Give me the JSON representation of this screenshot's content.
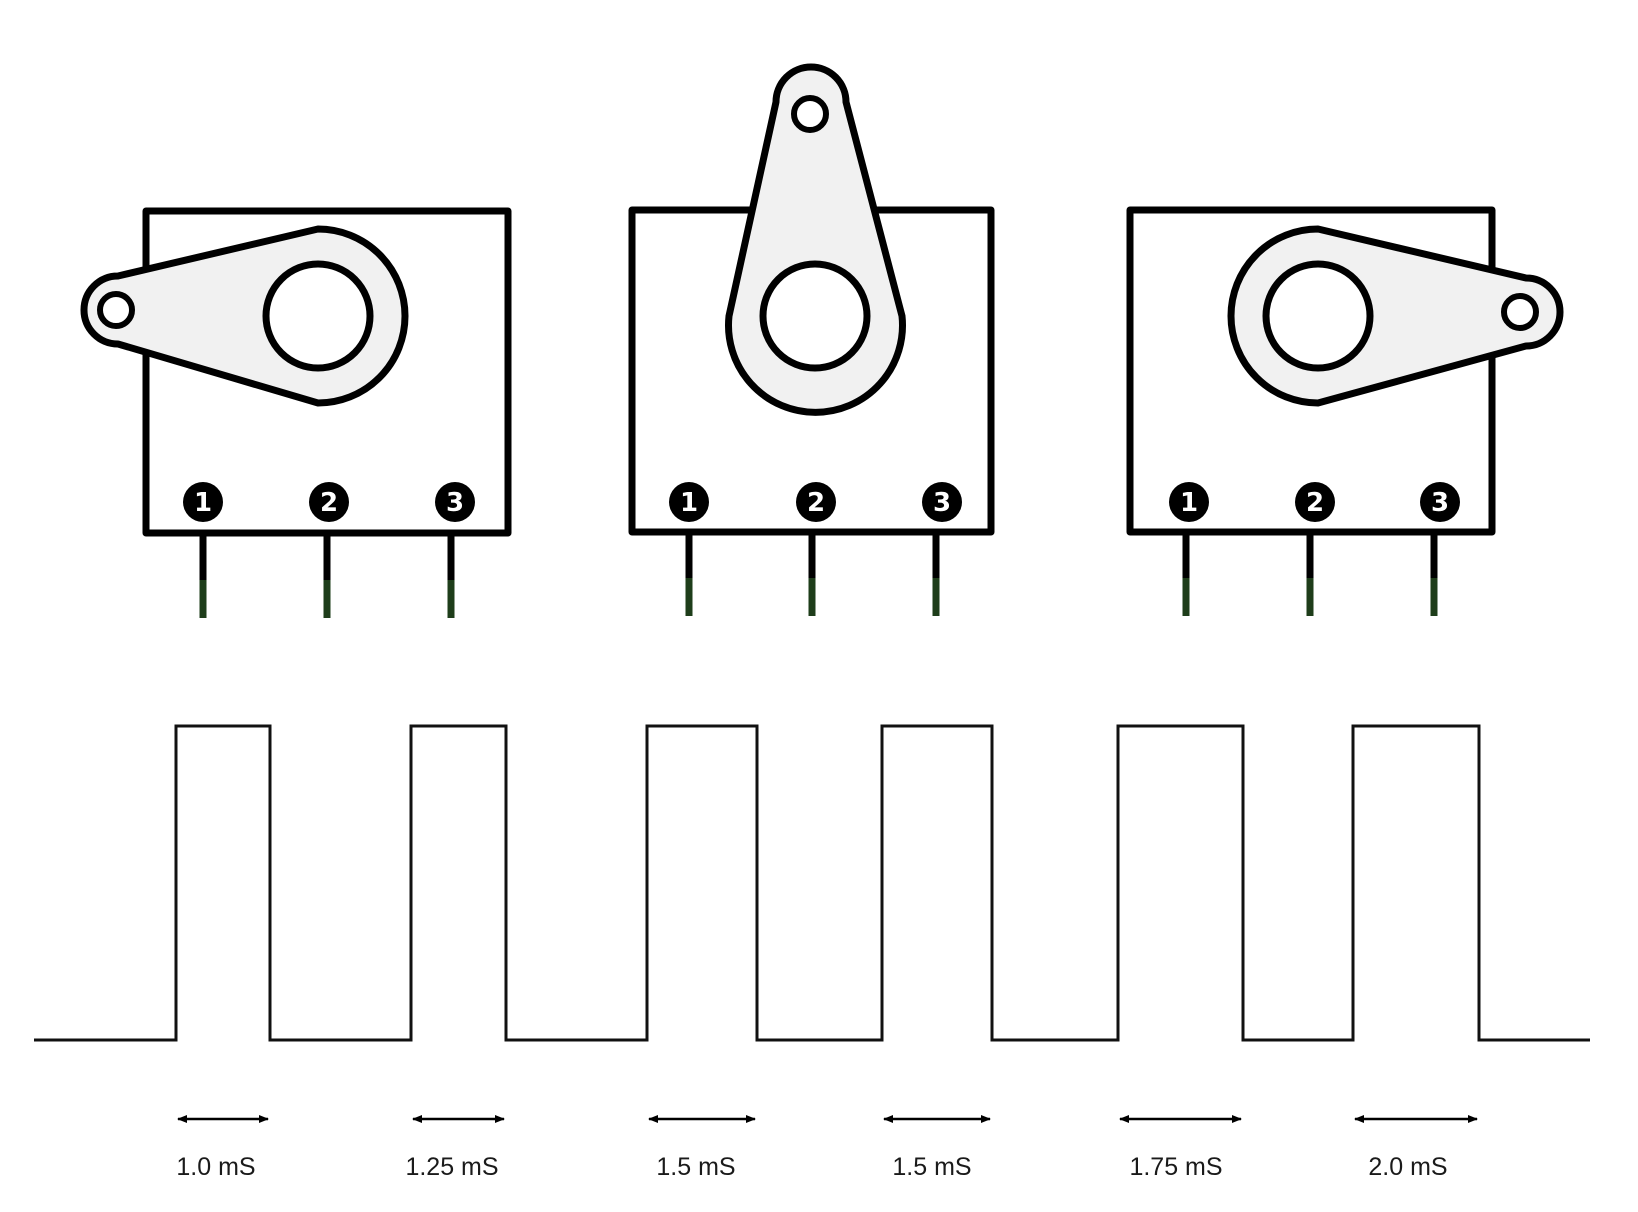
{
  "colors": {
    "outline": "#000000",
    "horn_fill": "#f1f1f1",
    "pin_tip": "#1e3d1a",
    "pin_badge": "#000000",
    "waveform": "#111111"
  },
  "servos": [
    {
      "name": "servo-left",
      "horn_direction": "left",
      "pins": [
        "1",
        "2",
        "3"
      ]
    },
    {
      "name": "servo-center",
      "horn_direction": "up",
      "pins": [
        "1",
        "2",
        "3"
      ]
    },
    {
      "name": "servo-right",
      "horn_direction": "right",
      "pins": [
        "1",
        "2",
        "3"
      ]
    }
  ],
  "waveform": {
    "pulse_count": 6
  },
  "pulses": [
    {
      "width": "1.0 mS"
    },
    {
      "width": "1.25 mS"
    },
    {
      "width": "1.5 mS"
    },
    {
      "width": "1.5 mS"
    },
    {
      "width": "1.75 mS"
    },
    {
      "width": "2.0 mS"
    }
  ]
}
